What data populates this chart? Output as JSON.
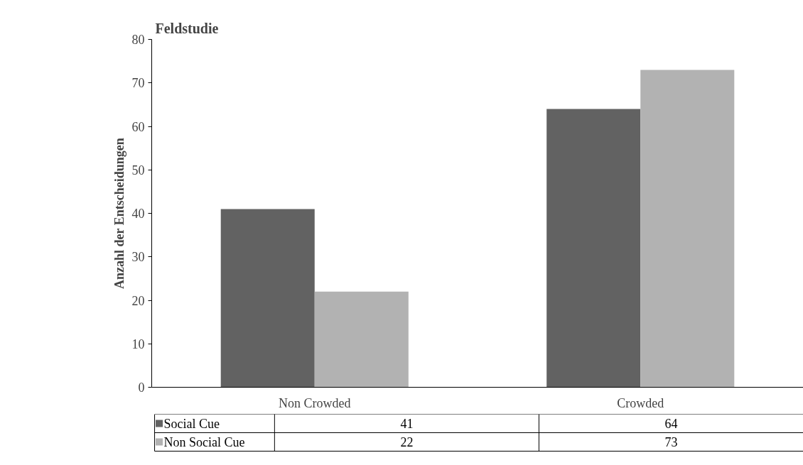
{
  "chart_data": {
    "type": "bar",
    "title": "Feldstudie",
    "ylabel": "Anzahl der Entscheidungen",
    "categories": [
      "Non Crowded",
      "Crowded"
    ],
    "series": [
      {
        "name": "Social Cue",
        "color": "#626262",
        "values": [
          41,
          64
        ]
      },
      {
        "name": "Non Social Cue",
        "color": "#b2b2b2",
        "values": [
          22,
          73
        ]
      }
    ],
    "ylim": [
      0,
      80
    ],
    "yticks": [
      0,
      10,
      20,
      30,
      40,
      50,
      60,
      70,
      80
    ],
    "grid": false,
    "legend": "bottom",
    "data_labels": true
  }
}
